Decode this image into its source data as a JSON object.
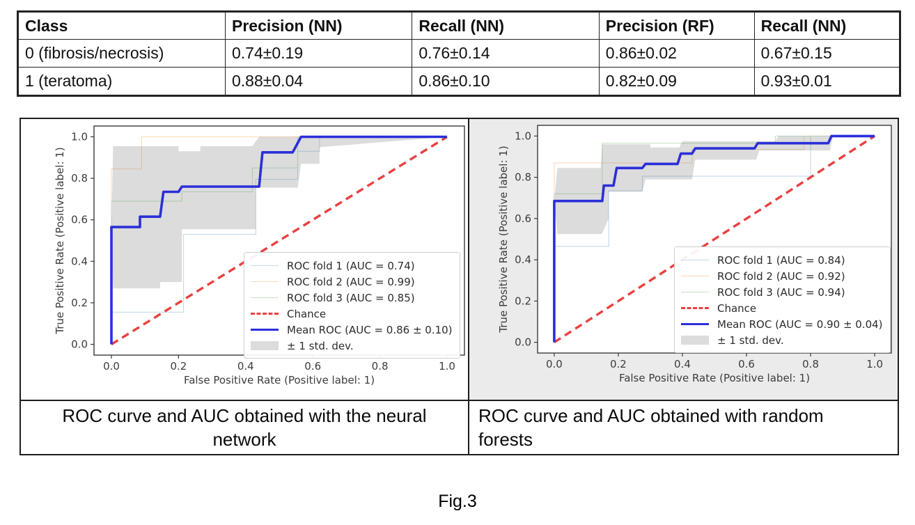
{
  "table": {
    "headers": [
      "Class",
      "Precision (NN)",
      "Recall (NN)",
      "Precision (RF)",
      "Recall (NN)"
    ],
    "rows": [
      [
        "0 (fibrosis/necrosis)",
        "0.74±0.19",
        "0.76±0.14",
        "0.86±0.02",
        "0.67±0.15"
      ],
      [
        "1 (teratoma)",
        "0.88±0.04",
        "0.86±0.10",
        "0.82±0.09",
        "0.93±0.01"
      ]
    ]
  },
  "figure": {
    "captions": {
      "left": "ROC curve and AUC obtained with the neural network",
      "right": "ROC curve and AUC obtained with random forests"
    },
    "label": "Fig.3"
  },
  "colors": {
    "mean_roc": "#2b2fd9",
    "chance": "#e94040",
    "fold1": "#c3d9ea",
    "fold2": "#fcd9b8",
    "fold3": "#c5e2c5",
    "std_band": "rgba(130,130,130,0.28)"
  },
  "chart_data": [
    {
      "type": "table",
      "title": "Precision and recall per class for NN and RF",
      "columns": [
        "Class",
        "Precision (NN)",
        "Recall (NN)",
        "Precision (RF)",
        "Recall (NN)"
      ],
      "rows": [
        [
          "0 (fibrosis/necrosis)",
          "0.74±0.19",
          "0.76±0.14",
          "0.86±0.02",
          "0.67±0.15"
        ],
        [
          "1 (teratoma)",
          "0.88±0.04",
          "0.86±0.10",
          "0.82±0.09",
          "0.93±0.01"
        ]
      ]
    },
    {
      "type": "line",
      "id": "roc_nn",
      "title": "ROC curve and AUC obtained with the neural network",
      "xlabel": "False Positive Rate (Positive label: 1)",
      "ylabel": "True Positive Rate (Positive label: 1)",
      "xlim": [
        -0.05,
        1.05
      ],
      "ylim": [
        -0.05,
        1.05
      ],
      "xticks": [
        "0.0",
        "0.2",
        "0.4",
        "0.6",
        "0.8",
        "1.0"
      ],
      "yticks": [
        "0.0",
        "0.2",
        "0.4",
        "0.6",
        "0.8",
        "1.0"
      ],
      "legend_position": "lower right",
      "grid": false,
      "series": [
        {
          "name": "ROC fold 1 (AUC = 0.74)",
          "color": "#c3d9ea",
          "width": 1.1,
          "dash": false,
          "points": [
            [
              0,
              0
            ],
            [
              0,
              0.155
            ],
            [
              0.215,
              0.155
            ],
            [
              0.215,
              0.53
            ],
            [
              0.43,
              0.53
            ],
            [
              0.43,
              0.795
            ],
            [
              0.555,
              0.795
            ],
            [
              0.555,
              0.93
            ],
            [
              0.62,
              0.93
            ],
            [
              0.62,
              1.0
            ],
            [
              1,
              1
            ]
          ]
        },
        {
          "name": "ROC fold 2 (AUC = 0.99)",
          "color": "#fcd9b8",
          "width": 1.1,
          "dash": false,
          "points": [
            [
              0,
              0
            ],
            [
              0,
              0.845
            ],
            [
              0.09,
              0.845
            ],
            [
              0.09,
              1.0
            ],
            [
              1,
              1
            ]
          ]
        },
        {
          "name": "ROC fold 3 (AUC = 0.85)",
          "color": "#c5e2c5",
          "width": 1.1,
          "dash": false,
          "points": [
            [
              0,
              0
            ],
            [
              0,
              0.69
            ],
            [
              0.21,
              0.69
            ],
            [
              0.21,
              0.735
            ],
            [
              0.42,
              0.735
            ],
            [
              0.42,
              0.85
            ],
            [
              0.555,
              0.85
            ],
            [
              0.555,
              1.0
            ],
            [
              1,
              1
            ]
          ]
        },
        {
          "name": "Chance",
          "color": "#e94040",
          "width": 3.4,
          "dash": true,
          "points": [
            [
              0,
              0
            ],
            [
              1,
              1
            ]
          ]
        },
        {
          "name": "Mean ROC (AUC = 0.86 ± 0.10)",
          "color": "#2b2fd9",
          "width": 3.6,
          "dash": false,
          "points": [
            [
              0,
              0
            ],
            [
              0,
              0.565
            ],
            [
              0.085,
              0.565
            ],
            [
              0.085,
              0.615
            ],
            [
              0.145,
              0.615
            ],
            [
              0.155,
              0.735
            ],
            [
              0.2,
              0.735
            ],
            [
              0.21,
              0.76
            ],
            [
              0.44,
              0.76
            ],
            [
              0.45,
              0.925
            ],
            [
              0.54,
              0.925
            ],
            [
              0.55,
              0.955
            ],
            [
              0.565,
              1.0
            ],
            [
              1,
              1
            ]
          ]
        }
      ],
      "band": {
        "name": "± 1 std. dev.",
        "color": "rgba(130,130,130,0.28)",
        "upper": [
          [
            0,
            0.565
          ],
          [
            0.005,
            0.955
          ],
          [
            0.2,
            0.955
          ],
          [
            0.2,
            0.93
          ],
          [
            0.265,
            0.93
          ],
          [
            0.265,
            0.955
          ],
          [
            0.42,
            0.955
          ],
          [
            0.44,
            1.0
          ],
          [
            1,
            1
          ]
        ],
        "lower": [
          [
            0,
            0.565
          ],
          [
            0.005,
            0.27
          ],
          [
            0.145,
            0.27
          ],
          [
            0.145,
            0.3
          ],
          [
            0.21,
            0.3
          ],
          [
            0.21,
            0.555
          ],
          [
            0.43,
            0.555
          ],
          [
            0.43,
            0.755
          ],
          [
            0.555,
            0.755
          ],
          [
            0.565,
            0.87
          ],
          [
            0.62,
            0.87
          ],
          [
            0.62,
            0.95
          ],
          [
            1,
            1
          ]
        ]
      }
    },
    {
      "type": "line",
      "id": "roc_rf",
      "title": "ROC curve and AUC obtained with random forests",
      "xlabel": "False Positive Rate (Positive label: 1)",
      "ylabel": "True Positive Rate (Positive label: 1)",
      "xlim": [
        -0.05,
        1.05
      ],
      "ylim": [
        -0.05,
        1.05
      ],
      "xticks": [
        "0.0",
        "0.2",
        "0.4",
        "0.6",
        "0.8",
        "1.0"
      ],
      "yticks": [
        "0.0",
        "0.2",
        "0.4",
        "0.6",
        "0.8",
        "1.0"
      ],
      "legend_position": "lower right",
      "grid": false,
      "series": [
        {
          "name": "ROC fold 1 (AUC = 0.84)",
          "color": "#c3d9ea",
          "width": 1.1,
          "dash": false,
          "points": [
            [
              0,
              0
            ],
            [
              0,
              0.465
            ],
            [
              0.17,
              0.465
            ],
            [
              0.17,
              0.735
            ],
            [
              0.275,
              0.735
            ],
            [
              0.275,
              0.805
            ],
            [
              0.8,
              0.805
            ],
            [
              0.8,
              1.0
            ],
            [
              1,
              1
            ]
          ]
        },
        {
          "name": "ROC fold 2 (AUC = 0.92)",
          "color": "#fcd9b8",
          "width": 1.1,
          "dash": false,
          "points": [
            [
              0,
              0
            ],
            [
              0,
              0.87
            ],
            [
              0.43,
              0.87
            ],
            [
              0.43,
              0.935
            ],
            [
              0.78,
              0.935
            ],
            [
              0.78,
              1.0
            ],
            [
              1,
              1
            ]
          ]
        },
        {
          "name": "ROC fold 3 (AUC = 0.94)",
          "color": "#c5e2c5",
          "width": 1.1,
          "dash": false,
          "points": [
            [
              0,
              0
            ],
            [
              0,
              0.72
            ],
            [
              0.15,
              0.72
            ],
            [
              0.15,
              0.965
            ],
            [
              0.69,
              0.965
            ],
            [
              0.69,
              1.0
            ],
            [
              1,
              1
            ]
          ]
        },
        {
          "name": "Chance",
          "color": "#e94040",
          "width": 3.4,
          "dash": true,
          "points": [
            [
              0,
              0
            ],
            [
              1,
              1
            ]
          ]
        },
        {
          "name": "Mean ROC (AUC = 0.90 ± 0.04)",
          "color": "#2b2fd9",
          "width": 3.6,
          "dash": false,
          "points": [
            [
              0,
              0
            ],
            [
              0,
              0.685
            ],
            [
              0.15,
              0.685
            ],
            [
              0.155,
              0.76
            ],
            [
              0.185,
              0.76
            ],
            [
              0.195,
              0.845
            ],
            [
              0.275,
              0.845
            ],
            [
              0.285,
              0.865
            ],
            [
              0.385,
              0.865
            ],
            [
              0.395,
              0.915
            ],
            [
              0.43,
              0.915
            ],
            [
              0.44,
              0.94
            ],
            [
              0.625,
              0.94
            ],
            [
              0.635,
              0.965
            ],
            [
              0.855,
              0.965
            ],
            [
              0.865,
              1.0
            ],
            [
              1,
              1
            ]
          ]
        }
      ],
      "band": {
        "name": "± 1 std. dev.",
        "color": "rgba(130,130,130,0.28)",
        "upper": [
          [
            0,
            0.685
          ],
          [
            0.01,
            0.845
          ],
          [
            0.145,
            0.845
          ],
          [
            0.15,
            0.96
          ],
          [
            0.3,
            0.96
          ],
          [
            0.3,
            0.945
          ],
          [
            0.39,
            0.945
          ],
          [
            0.4,
            0.975
          ],
          [
            0.69,
            0.975
          ],
          [
            0.7,
            1.0
          ],
          [
            1,
            1
          ]
        ],
        "lower": [
          [
            0,
            0.685
          ],
          [
            0.01,
            0.525
          ],
          [
            0.145,
            0.525
          ],
          [
            0.15,
            0.53
          ],
          [
            0.17,
            0.6
          ],
          [
            0.17,
            0.73
          ],
          [
            0.275,
            0.73
          ],
          [
            0.285,
            0.79
          ],
          [
            0.43,
            0.79
          ],
          [
            0.44,
            0.885
          ],
          [
            0.63,
            0.885
          ],
          [
            0.64,
            0.93
          ],
          [
            0.86,
            0.93
          ],
          [
            0.87,
            1.0
          ],
          [
            1,
            1
          ]
        ]
      }
    }
  ]
}
